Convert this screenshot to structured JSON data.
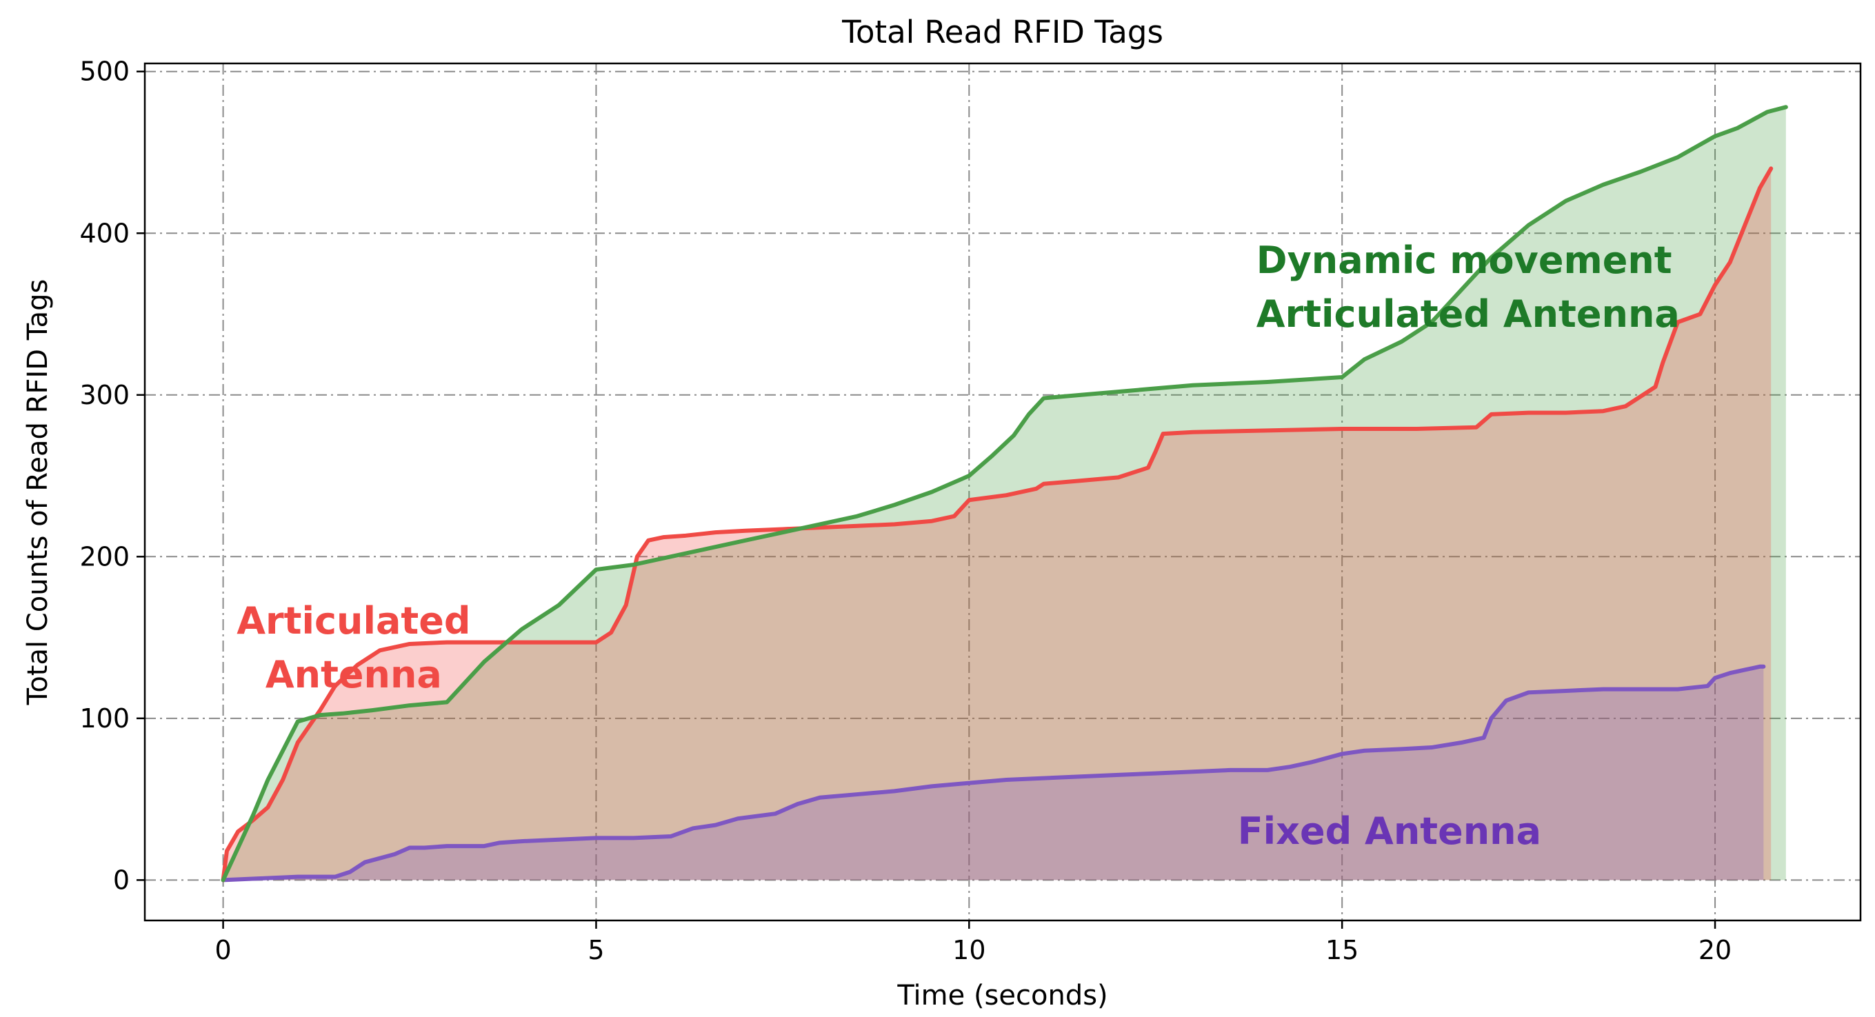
{
  "chart_data": {
    "type": "area",
    "title": "Total Read RFID Tags",
    "xlabel": "Time (seconds)",
    "ylabel": "Total Counts of Read RFID Tags",
    "xlim": [
      -1.05,
      21.95
    ],
    "ylim": [
      -25,
      505
    ],
    "xticks": [
      0,
      5,
      10,
      15,
      20
    ],
    "yticks": [
      0,
      100,
      200,
      300,
      400,
      500
    ],
    "grid": true,
    "series": [
      {
        "key": "fixed",
        "color": "#7e57c2",
        "fill_color": "#7e57c2",
        "x": [
          0,
          0.5,
          1.0,
          1.5,
          1.7,
          1.9,
          2.3,
          2.5,
          2.7,
          3.0,
          3.3,
          3.5,
          3.7,
          4.0,
          4.5,
          5.0,
          5.5,
          6.0,
          6.3,
          6.6,
          6.9,
          7.4,
          7.7,
          8.0,
          8.5,
          9.0,
          9.5,
          10.0,
          10.5,
          11.0,
          12.0,
          12.5,
          13.0,
          13.5,
          14.0,
          14.3,
          14.6,
          15.0,
          15.3,
          15.8,
          16.2,
          16.6,
          16.9,
          17.0,
          17.2,
          17.5,
          18.0,
          18.5,
          19.0,
          19.5,
          19.9,
          20.0,
          20.2,
          20.4,
          20.6,
          20.65
        ],
        "y": [
          0,
          1,
          2,
          2,
          5,
          11,
          16,
          20,
          20,
          21,
          21,
          21,
          23,
          24,
          25,
          26,
          26,
          27,
          32,
          34,
          38,
          41,
          47,
          51,
          53,
          55,
          58,
          60,
          62,
          63,
          65,
          66,
          67,
          68,
          68,
          70,
          73,
          78,
          80,
          81,
          82,
          85,
          88,
          100,
          111,
          116,
          117,
          118,
          118,
          118,
          120,
          125,
          128,
          130,
          132,
          132
        ],
        "label": "Fixed Antenna"
      },
      {
        "key": "articulated",
        "color": "#f04a45",
        "fill_color": "#f04a45",
        "x": [
          0,
          0.05,
          0.2,
          0.4,
          0.6,
          0.8,
          1.0,
          1.3,
          1.5,
          1.8,
          2.1,
          2.5,
          3.0,
          3.5,
          4.0,
          4.5,
          5.0,
          5.2,
          5.4,
          5.55,
          5.7,
          5.9,
          6.2,
          6.6,
          7.0,
          7.5,
          8.0,
          8.5,
          9.0,
          9.5,
          9.8,
          10.0,
          10.5,
          10.9,
          11.0,
          11.5,
          12.0,
          12.4,
          12.5,
          12.6,
          13.0,
          14.0,
          15.0,
          15.5,
          16.0,
          16.8,
          17.0,
          17.5,
          18.0,
          18.5,
          18.8,
          19.2,
          19.3,
          19.5,
          19.8,
          20.0,
          20.2,
          20.4,
          20.6,
          20.75
        ],
        "y": [
          0,
          18,
          30,
          37,
          45,
          62,
          85,
          105,
          120,
          133,
          142,
          146,
          147,
          147,
          147,
          147,
          147,
          153,
          170,
          200,
          210,
          212,
          213,
          215,
          216,
          217,
          218,
          219,
          220,
          222,
          225,
          235,
          238,
          242,
          245,
          247,
          249,
          255,
          265,
          276,
          277,
          278,
          279,
          279,
          279,
          280,
          288,
          289,
          289,
          290,
          293,
          305,
          320,
          345,
          350,
          368,
          382,
          405,
          428,
          440
        ],
        "label": "Articulated Antenna",
        "label_lines": [
          "Articulated",
          "Antenna"
        ]
      },
      {
        "key": "dynamic",
        "color": "#4a9e48",
        "fill_color": "#4a9e48",
        "x": [
          0,
          0.2,
          0.4,
          0.6,
          0.8,
          1.0,
          1.3,
          1.6,
          2.0,
          2.5,
          3.0,
          3.5,
          4.0,
          4.5,
          5.0,
          5.5,
          6.0,
          6.5,
          7.0,
          7.5,
          8.0,
          8.5,
          9.0,
          9.5,
          10.0,
          10.3,
          10.6,
          10.8,
          11.0,
          11.5,
          12.0,
          12.5,
          13.0,
          14.0,
          15.0,
          15.3,
          15.8,
          16.2,
          16.6,
          17.0,
          17.5,
          18.0,
          18.5,
          19.0,
          19.5,
          20.0,
          20.3,
          20.5,
          20.7,
          20.95
        ],
        "y": [
          0,
          20,
          40,
          62,
          80,
          98,
          102,
          103,
          105,
          108,
          110,
          135,
          155,
          170,
          192,
          195,
          200,
          205,
          210,
          215,
          220,
          225,
          232,
          240,
          250,
          262,
          275,
          288,
          298,
          300,
          302,
          304,
          306,
          308,
          311,
          322,
          333,
          345,
          365,
          385,
          405,
          420,
          430,
          438,
          447,
          460,
          465,
          470,
          475,
          478
        ],
        "label": "Dynamic movement Articulated Antenna",
        "label_lines": [
          "Dynamic movement",
          "Articulated Antenna"
        ]
      }
    ]
  }
}
